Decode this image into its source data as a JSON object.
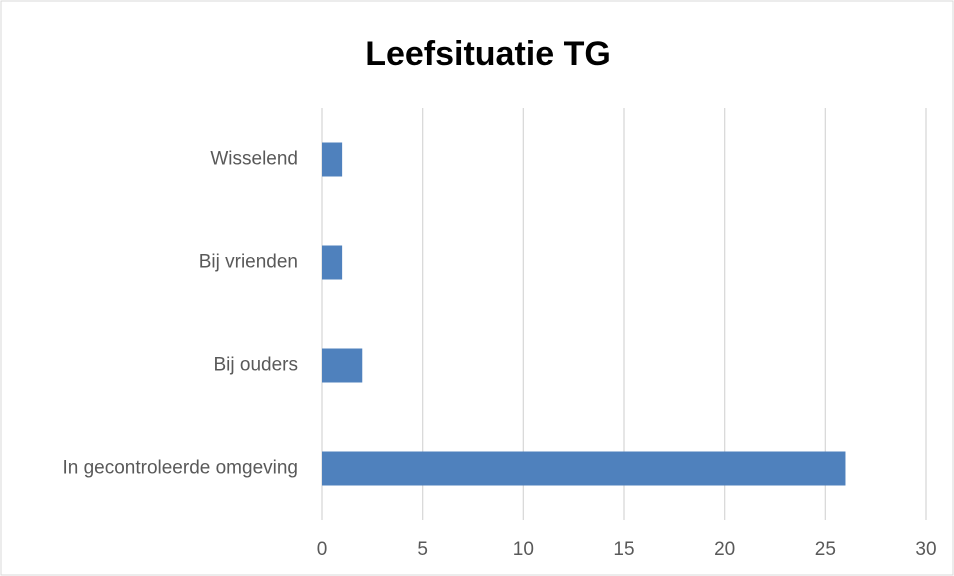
{
  "chart_data": {
    "type": "hbar",
    "title": "Leefsituatie TG",
    "categories": [
      "Wisselend",
      "Bij vrienden",
      "Bij ouders",
      "In gecontroleerde omgeving"
    ],
    "values": [
      1,
      1,
      2,
      26
    ],
    "color": "#4f81bd",
    "xlim": [
      0,
      30
    ],
    "xticks": [
      0,
      5,
      10,
      15,
      20,
      25,
      30
    ],
    "grid": true
  }
}
